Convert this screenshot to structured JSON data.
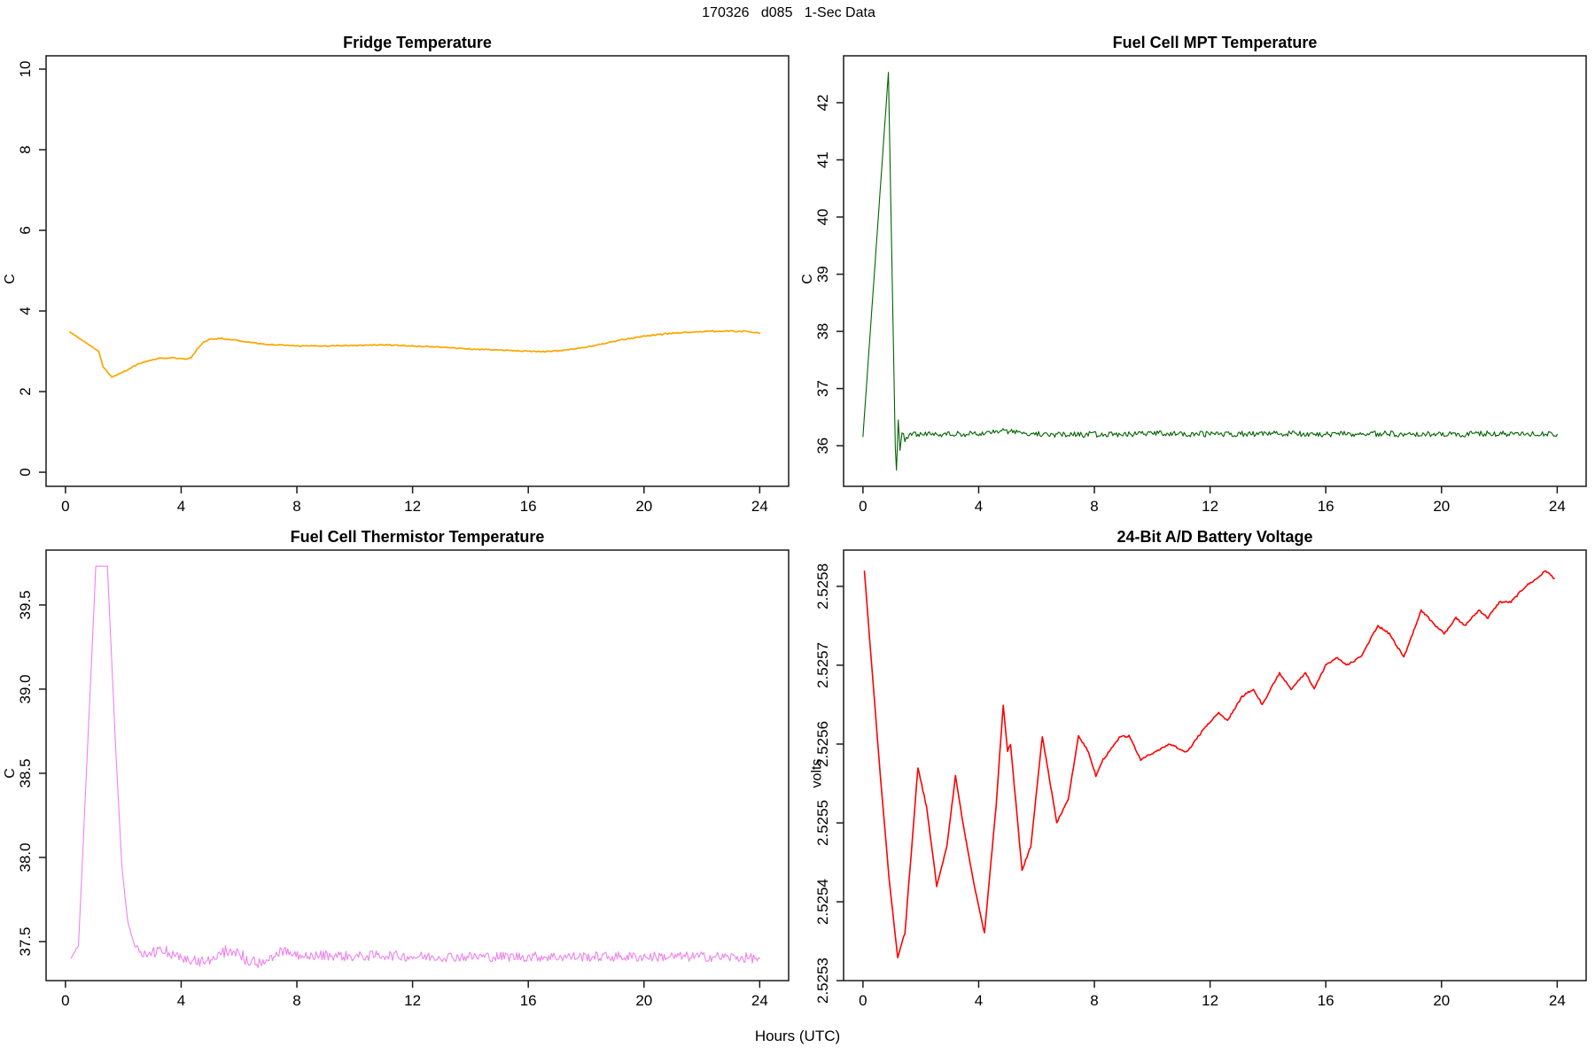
{
  "page_title": "170326   d085   1-Sec Data",
  "xaxis_label": "Hours (UTC)",
  "colors": {
    "fridge_line": "#FFA500",
    "mpt_line": "#006400",
    "thermistor_line": "#EE82EE",
    "battery_line": "#FF0000",
    "axis": "#1a1a1a"
  },
  "chart_data": [
    {
      "type": "line",
      "title": "Fridge Temperature",
      "ylabel": "C",
      "xlabel": "",
      "x_ticks": [
        0,
        4,
        8,
        12,
        16,
        20,
        24
      ],
      "y_ticks": [
        0,
        2,
        4,
        6,
        8,
        10
      ],
      "y_tick_labels": [
        "0",
        "2",
        "4",
        "6",
        "8",
        "10"
      ],
      "xlim": [
        -0.67,
        25.0
      ],
      "ylim": [
        -0.35,
        10.33
      ],
      "grid": false,
      "legend": "none",
      "color": "#FFA500",
      "line_width": 1.7,
      "points": [
        [
          0.15,
          3.48,
          0.004
        ],
        [
          1.15,
          3.0,
          0.004
        ],
        [
          1.3,
          2.62,
          0.01
        ],
        [
          1.6,
          2.36,
          0.013
        ],
        [
          1.9,
          2.45,
          0.013
        ],
        [
          2.5,
          2.68,
          0.013
        ],
        [
          2.9,
          2.77,
          0.013
        ],
        [
          3.3,
          2.83,
          0.013
        ],
        [
          3.7,
          2.84,
          0.013
        ],
        [
          3.95,
          2.82,
          0.013
        ],
        [
          4.15,
          2.8,
          0.013
        ],
        [
          4.35,
          2.85,
          0.015
        ],
        [
          4.55,
          3.05,
          0.015
        ],
        [
          4.75,
          3.22,
          0.015
        ],
        [
          5.0,
          3.3,
          0.015
        ],
        [
          5.4,
          3.32,
          0.015
        ],
        [
          6.0,
          3.26,
          0.013
        ],
        [
          6.8,
          3.18,
          0.013
        ],
        [
          8.0,
          3.13,
          0.013
        ],
        [
          9.5,
          3.14,
          0.013
        ],
        [
          11.0,
          3.16,
          0.013
        ],
        [
          12.5,
          3.12,
          0.013
        ],
        [
          14.0,
          3.06,
          0.013
        ],
        [
          15.3,
          3.02,
          0.013
        ],
        [
          16.6,
          2.99,
          0.013
        ],
        [
          17.3,
          3.03,
          0.013
        ],
        [
          18.0,
          3.1,
          0.014
        ],
        [
          19.0,
          3.25,
          0.015
        ],
        [
          20.0,
          3.38,
          0.016
        ],
        [
          21.0,
          3.45,
          0.016
        ],
        [
          22.0,
          3.49,
          0.015
        ],
        [
          23.0,
          3.5,
          0.015
        ],
        [
          23.6,
          3.49,
          0.014
        ],
        [
          24.0,
          3.45,
          0.012
        ]
      ]
    },
    {
      "type": "line",
      "title": "Fuel Cell MPT Temperature",
      "ylabel": "C",
      "xlabel": "",
      "x_ticks": [
        0,
        4,
        8,
        12,
        16,
        20,
        24
      ],
      "y_ticks": [
        36,
        37,
        38,
        39,
        40,
        41,
        42
      ],
      "y_tick_labels": [
        "36",
        "37",
        "38",
        "39",
        "40",
        "41",
        "42"
      ],
      "xlim": [
        -0.67,
        25.0
      ],
      "ylim": [
        35.29,
        42.82
      ],
      "grid": false,
      "legend": "none",
      "color": "#006400",
      "line_width": 1.1,
      "points": [
        [
          0.0,
          36.16,
          0.0
        ],
        [
          0.88,
          42.53,
          0.0
        ],
        [
          1.12,
          35.95,
          0.0
        ],
        [
          1.16,
          35.57,
          0.0
        ],
        [
          1.22,
          36.45,
          0.0
        ],
        [
          1.28,
          35.92,
          0.02
        ],
        [
          1.35,
          36.25,
          0.03
        ],
        [
          1.45,
          36.12,
          0.05
        ],
        [
          1.6,
          36.2,
          0.05
        ],
        [
          2.5,
          36.2,
          0.05
        ],
        [
          4.0,
          36.21,
          0.05
        ],
        [
          4.8,
          36.26,
          0.05
        ],
        [
          5.6,
          36.23,
          0.05
        ],
        [
          6.5,
          36.19,
          0.05
        ],
        [
          8.0,
          36.2,
          0.05
        ],
        [
          10.0,
          36.21,
          0.05
        ],
        [
          12.0,
          36.2,
          0.05
        ],
        [
          14.0,
          36.21,
          0.05
        ],
        [
          16.0,
          36.2,
          0.05
        ],
        [
          18.0,
          36.21,
          0.05
        ],
        [
          20.0,
          36.2,
          0.05
        ],
        [
          22.0,
          36.21,
          0.05
        ],
        [
          24.0,
          36.2,
          0.05
        ]
      ]
    },
    {
      "type": "line",
      "title": "Fuel Cell Thermistor Temperature",
      "ylabel": "C",
      "xlabel": "",
      "x_ticks": [
        0,
        4,
        8,
        12,
        16,
        20,
        24
      ],
      "y_ticks": [
        37.5,
        38.0,
        38.5,
        39.0,
        39.5
      ],
      "y_tick_labels": [
        "37.5",
        "38.0",
        "38.5",
        "39.0",
        "39.5"
      ],
      "xlim": [
        -0.67,
        25.0
      ],
      "ylim": [
        37.268,
        39.826
      ],
      "grid": false,
      "legend": "none",
      "color": "#EE82EE",
      "line_width": 1.1,
      "points": [
        [
          0.2,
          37.4,
          0.005
        ],
        [
          0.45,
          37.48,
          0.005
        ],
        [
          1.05,
          39.73,
          0.0
        ],
        [
          1.45,
          39.73,
          0.0
        ],
        [
          1.75,
          38.6,
          0.0
        ],
        [
          1.95,
          37.95,
          0.0
        ],
        [
          2.15,
          37.62,
          0.01
        ],
        [
          2.35,
          37.5,
          0.02
        ],
        [
          2.6,
          37.44,
          0.03
        ],
        [
          3.0,
          37.43,
          0.035
        ],
        [
          3.4,
          37.45,
          0.035
        ],
        [
          3.8,
          37.42,
          0.035
        ],
        [
          4.3,
          37.4,
          0.035
        ],
        [
          4.9,
          37.37,
          0.035
        ],
        [
          5.4,
          37.44,
          0.04
        ],
        [
          5.8,
          37.45,
          0.04
        ],
        [
          6.3,
          37.39,
          0.035
        ],
        [
          6.7,
          37.37,
          0.035
        ],
        [
          7.2,
          37.42,
          0.035
        ],
        [
          7.6,
          37.44,
          0.035
        ],
        [
          8.1,
          37.41,
          0.03
        ],
        [
          9.0,
          37.42,
          0.03
        ],
        [
          10.0,
          37.41,
          0.03
        ],
        [
          11.0,
          37.42,
          0.03
        ],
        [
          12.0,
          37.41,
          0.03
        ],
        [
          13.5,
          37.41,
          0.03
        ],
        [
          15.0,
          37.41,
          0.03
        ],
        [
          16.5,
          37.41,
          0.03
        ],
        [
          18.0,
          37.41,
          0.03
        ],
        [
          19.5,
          37.41,
          0.03
        ],
        [
          21.0,
          37.41,
          0.03
        ],
        [
          22.5,
          37.41,
          0.03
        ],
        [
          24.0,
          37.4,
          0.03
        ]
      ]
    },
    {
      "type": "line",
      "title": "24-Bit A/D Battery Voltage",
      "ylabel": "volts",
      "xlabel": "",
      "x_ticks": [
        0,
        4,
        8,
        12,
        16,
        20,
        24
      ],
      "y_ticks": [
        2.5253,
        2.5254,
        2.5255,
        2.5256,
        2.5257,
        2.5258
      ],
      "y_tick_labels": [
        "2.5253",
        "2.5254",
        "2.5255",
        "2.5256",
        "2.5257",
        "2.5258"
      ],
      "xlim": [
        -0.67,
        25.0
      ],
      "ylim": [
        2.5253,
        2.525846
      ],
      "grid": false,
      "legend": "none",
      "color": "#FF0000",
      "line_width": 1.6,
      "points": [
        [
          0.05,
          2.52582,
          8e-07
        ],
        [
          0.3,
          2.5257,
          8e-07
        ],
        [
          0.6,
          2.52556,
          8e-07
        ],
        [
          0.9,
          2.52543,
          8e-07
        ],
        [
          1.2,
          2.52533,
          1e-06
        ],
        [
          1.45,
          2.52536,
          1.2e-06
        ],
        [
          1.9,
          2.52557,
          1.2e-06
        ],
        [
          2.2,
          2.52552,
          1.2e-06
        ],
        [
          2.55,
          2.52542,
          1.2e-06
        ],
        [
          2.9,
          2.52547,
          1.2e-06
        ],
        [
          3.2,
          2.52556,
          1.2e-06
        ],
        [
          3.5,
          2.52549,
          1.2e-06
        ],
        [
          3.8,
          2.52543,
          1.2e-06
        ],
        [
          4.2,
          2.52536,
          1.2e-06
        ],
        [
          4.6,
          2.52552,
          1.2e-06
        ],
        [
          4.85,
          2.52565,
          1.2e-06
        ],
        [
          5.0,
          2.52559,
          1.2e-06
        ],
        [
          5.1,
          2.5256,
          1.2e-06
        ],
        [
          5.5,
          2.52544,
          1.2e-06
        ],
        [
          5.8,
          2.52547,
          1.2e-06
        ],
        [
          6.2,
          2.52561,
          1.2e-06
        ],
        [
          6.7,
          2.5255,
          1.2e-06
        ],
        [
          7.1,
          2.52553,
          1.2e-06
        ],
        [
          7.45,
          2.52561,
          1.2e-06
        ],
        [
          7.8,
          2.52559,
          1.2e-06
        ],
        [
          8.05,
          2.52556,
          1.2e-06
        ],
        [
          8.3,
          2.52558,
          1.2e-06
        ],
        [
          8.9,
          2.52561,
          1.2e-06
        ],
        [
          9.2,
          2.52561,
          1.2e-06
        ],
        [
          9.6,
          2.52558,
          1.2e-06
        ],
        [
          10.1,
          2.52559,
          1.2e-06
        ],
        [
          10.6,
          2.5256,
          1.2e-06
        ],
        [
          11.2,
          2.52559,
          1.2e-06
        ],
        [
          11.8,
          2.52562,
          1.2e-06
        ],
        [
          12.3,
          2.52564,
          1.2e-06
        ],
        [
          12.6,
          2.52563,
          1.2e-06
        ],
        [
          13.1,
          2.52566,
          1.2e-06
        ],
        [
          13.5,
          2.52567,
          1.2e-06
        ],
        [
          13.8,
          2.52565,
          1.2e-06
        ],
        [
          14.4,
          2.52569,
          1.2e-06
        ],
        [
          14.8,
          2.52567,
          1.2e-06
        ],
        [
          15.3,
          2.52569,
          1.2e-06
        ],
        [
          15.6,
          2.52567,
          1.2e-06
        ],
        [
          16.0,
          2.5257,
          1.2e-06
        ],
        [
          16.4,
          2.52571,
          1.2e-06
        ],
        [
          16.7,
          2.5257,
          1.2e-06
        ],
        [
          17.2,
          2.52571,
          1.2e-06
        ],
        [
          17.8,
          2.52575,
          1.2e-06
        ],
        [
          18.2,
          2.52574,
          1.2e-06
        ],
        [
          18.7,
          2.52571,
          1.2e-06
        ],
        [
          19.3,
          2.52577,
          1.2e-06
        ],
        [
          19.8,
          2.52575,
          1.2e-06
        ],
        [
          20.1,
          2.52574,
          1.2e-06
        ],
        [
          20.5,
          2.52576,
          1.2e-06
        ],
        [
          20.8,
          2.52575,
          1.2e-06
        ],
        [
          21.3,
          2.52577,
          1.2e-06
        ],
        [
          21.6,
          2.52576,
          1.2e-06
        ],
        [
          22.0,
          2.52578,
          1.2e-06
        ],
        [
          22.4,
          2.52578,
          1.2e-06
        ],
        [
          22.9,
          2.5258,
          1.2e-06
        ],
        [
          23.3,
          2.52581,
          1.2e-06
        ],
        [
          23.6,
          2.52582,
          1.2e-06
        ],
        [
          23.9,
          2.52581,
          1.2e-06
        ]
      ]
    }
  ]
}
